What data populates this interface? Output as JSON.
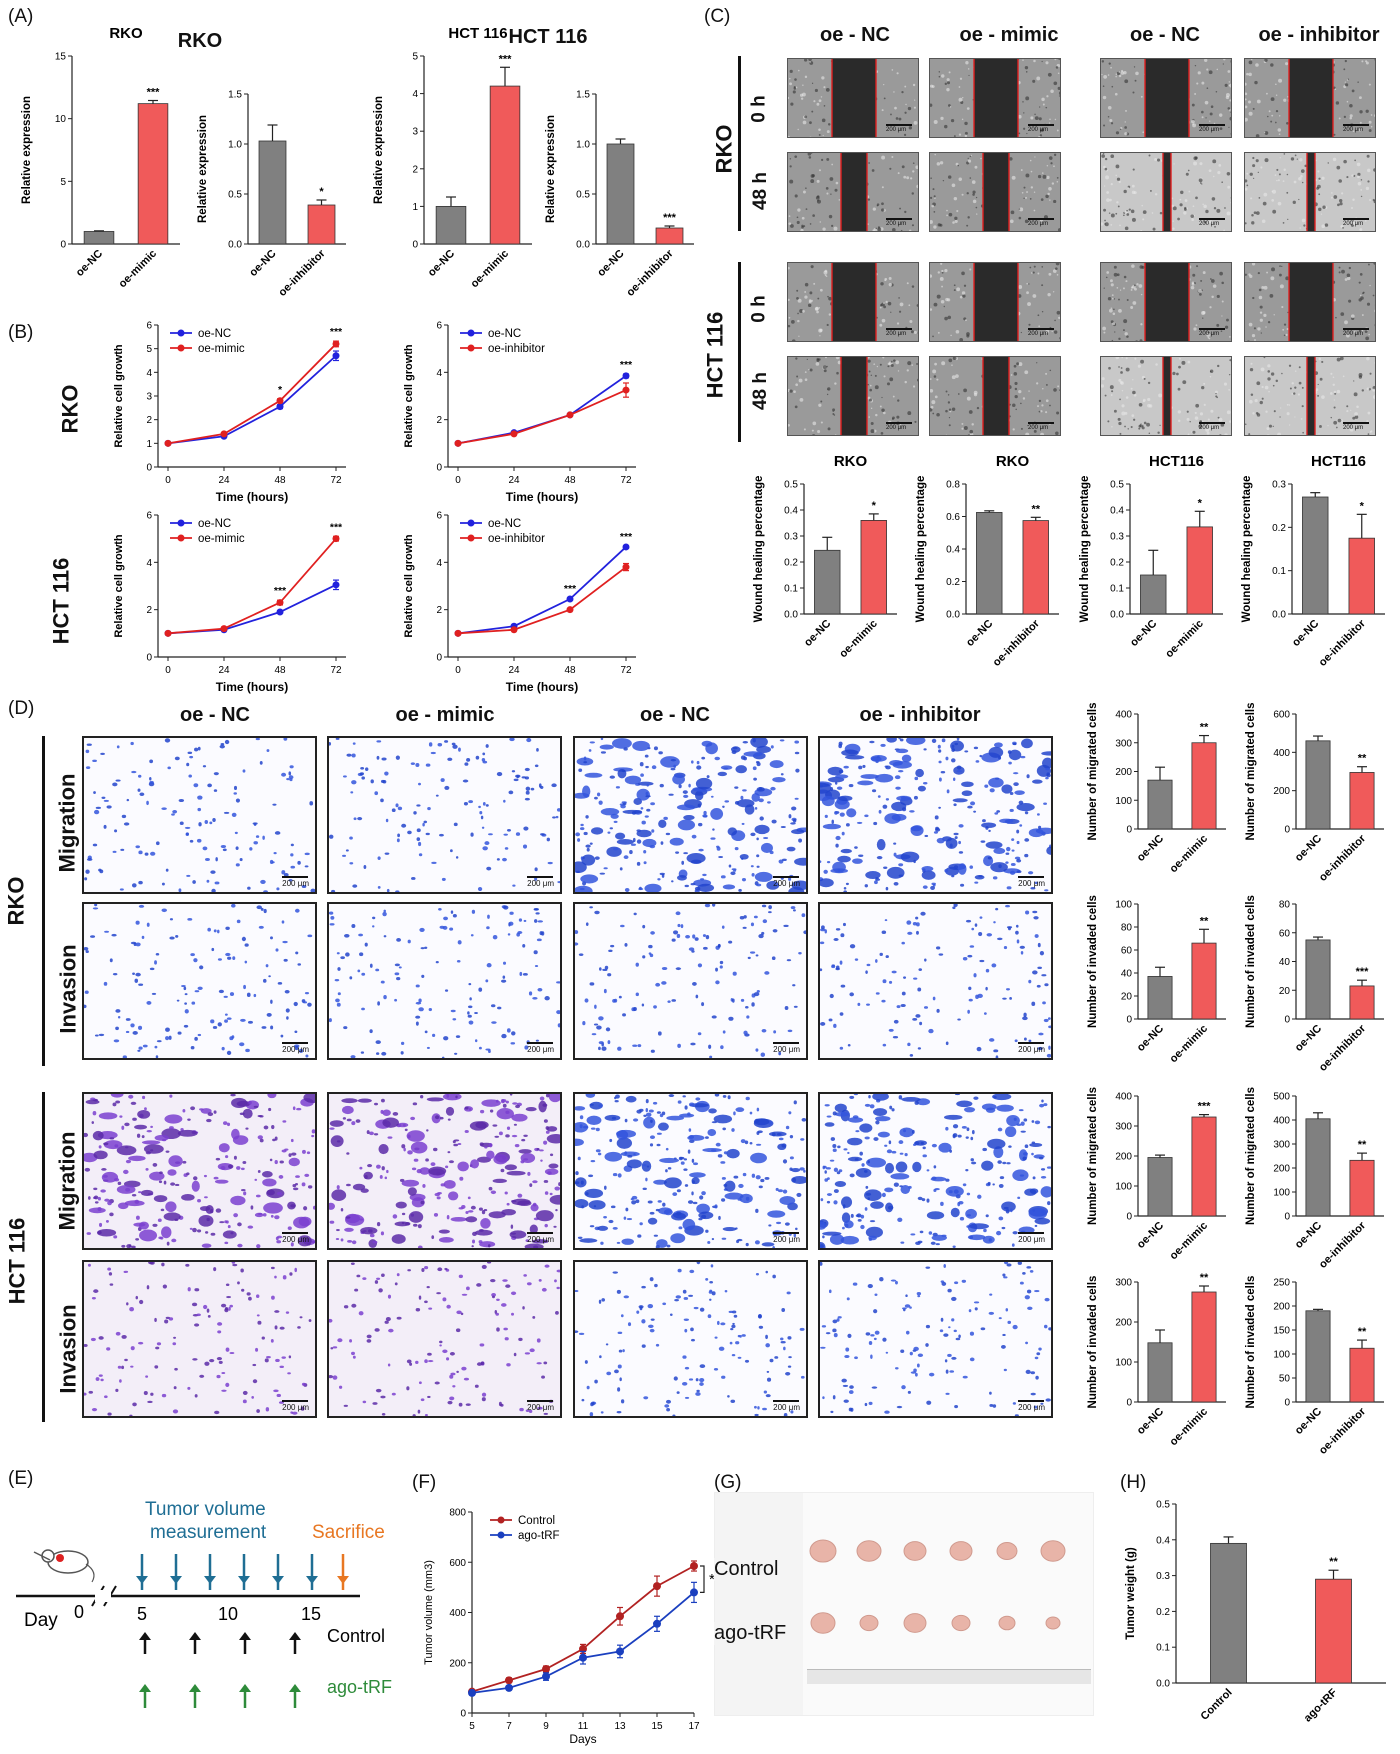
{
  "panels": {
    "A": "(A)",
    "B": "(B)",
    "C": "(C)",
    "D": "(D)",
    "E": "(E)",
    "F": "(F)",
    "G": "(G)",
    "H": "(H)"
  },
  "cells": {
    "rko": "RKO",
    "hct": "HCT 116",
    "hct_nospace": "HCT116"
  },
  "groups": {
    "oe_nc": "oe - NC",
    "oe_mimic": "oe - mimic",
    "oe_inhibitor": "oe - inhibitor"
  },
  "timepoints": {
    "t0": "0 h",
    "t48": "48 h"
  },
  "assays": {
    "migration": "Migration",
    "invasion": "Invasion"
  },
  "scale": "200 μm",
  "panel_e": {
    "measure_line1": "Tumor volume",
    "measure_line2": "measurement",
    "sacrifice": "Sacrifice",
    "day": "Day",
    "ticks": [
      "0",
      "5",
      "10",
      "15"
    ],
    "control": "Control",
    "ago": "ago-tRF",
    "colors": {
      "measure": "#1f6e94",
      "sacrifice": "#e87722",
      "control": "#111111",
      "ago": "#2e8b3a"
    }
  },
  "panel_g": {
    "control": "Control",
    "ago": "ago-tRF"
  },
  "colors": {
    "grey": "#808080",
    "red": "#f05a5a",
    "blue": "#2222dd",
    "redline": "#e02020",
    "darkred": "#b22222",
    "navy": "#1a3fbf"
  },
  "chart_data": [
    {
      "id": "A1",
      "type": "bar",
      "title": "RKO",
      "ylabel": "Relative expression",
      "categories": [
        "oe-NC",
        "oe-mimic"
      ],
      "values": [
        1.0,
        11.2
      ],
      "errors": [
        0.05,
        0.25
      ],
      "ylim": [
        0,
        15
      ],
      "yticks": [
        0,
        5,
        10,
        15
      ],
      "sig": [
        "",
        "***"
      ]
    },
    {
      "id": "A2",
      "type": "bar",
      "ylabel": "Relative expression",
      "categories": [
        "oe-NC",
        "oe-inhibitor"
      ],
      "values": [
        1.03,
        0.39
      ],
      "errors": [
        0.16,
        0.05
      ],
      "ylim": [
        0,
        1.5
      ],
      "yticks": [
        0,
        0.5,
        1.0,
        1.5
      ],
      "sig": [
        "",
        "*"
      ]
    },
    {
      "id": "A3",
      "type": "bar",
      "title": "HCT 116",
      "ylabel": "Relative expression",
      "categories": [
        "oe-NC",
        "oe-mimic"
      ],
      "values": [
        1.0,
        4.2
      ],
      "errors": [
        0.25,
        0.5
      ],
      "ylim": [
        0,
        5
      ],
      "yticks": [
        0,
        1,
        2,
        3,
        4,
        5
      ],
      "sig": [
        "",
        "***"
      ]
    },
    {
      "id": "A4",
      "type": "bar",
      "ylabel": "Relative expression",
      "categories": [
        "oe-NC",
        "oe-inhibitor"
      ],
      "values": [
        1.0,
        0.16
      ],
      "errors": [
        0.05,
        0.02
      ],
      "ylim": [
        0,
        1.5
      ],
      "yticks": [
        0,
        0.5,
        1.0,
        1.5
      ],
      "sig": [
        "",
        "***"
      ]
    },
    {
      "id": "B1",
      "type": "line",
      "xlabel": "Time (hours)",
      "ylabel": "Relative cell growth",
      "x": [
        0,
        24,
        48,
        72
      ],
      "ylim": [
        0,
        6
      ],
      "yticks": [
        0,
        1,
        2,
        3,
        4,
        5,
        6
      ],
      "sig": [
        "",
        "",
        "*",
        "***"
      ],
      "series": [
        {
          "name": "oe-NC",
          "values": [
            1.0,
            1.3,
            2.55,
            4.7
          ],
          "errors": [
            0.05,
            0.05,
            0.08,
            0.2
          ]
        },
        {
          "name": "oe-mimic",
          "values": [
            1.0,
            1.4,
            2.8,
            5.2
          ],
          "errors": [
            0.05,
            0.05,
            0.08,
            0.12
          ]
        }
      ]
    },
    {
      "id": "B2",
      "type": "line",
      "xlabel": "Time (hours)",
      "ylabel": "Relative cell growth",
      "x": [
        0,
        24,
        48,
        72
      ],
      "ylim": [
        0,
        6
      ],
      "yticks": [
        0,
        2,
        4,
        6
      ],
      "sig": [
        "",
        "",
        "",
        "***"
      ],
      "series": [
        {
          "name": "oe-NC",
          "values": [
            1.0,
            1.45,
            2.2,
            3.85
          ],
          "errors": [
            0.05,
            0.05,
            0.05,
            0.08
          ]
        },
        {
          "name": "oe-inhibitor",
          "values": [
            1.0,
            1.4,
            2.2,
            3.25
          ],
          "errors": [
            0.05,
            0.05,
            0.05,
            0.3
          ]
        }
      ]
    },
    {
      "id": "B3",
      "type": "line",
      "xlabel": "Time (hours)",
      "ylabel": "Relative cell growth",
      "x": [
        0,
        24,
        48,
        72
      ],
      "ylim": [
        0,
        6
      ],
      "yticks": [
        0,
        2,
        4,
        6
      ],
      "sig": [
        "",
        "",
        "***",
        "***"
      ],
      "series": [
        {
          "name": "oe-NC",
          "values": [
            1.0,
            1.15,
            1.9,
            3.05
          ],
          "errors": [
            0.05,
            0.05,
            0.05,
            0.2
          ]
        },
        {
          "name": "oe-mimic",
          "values": [
            1.0,
            1.2,
            2.3,
            5.0
          ],
          "errors": [
            0.05,
            0.05,
            0.1,
            0.1
          ]
        }
      ]
    },
    {
      "id": "B4",
      "type": "line",
      "xlabel": "Time (hours)",
      "ylabel": "Relative cell growth",
      "x": [
        0,
        24,
        48,
        72
      ],
      "ylim": [
        0,
        6
      ],
      "yticks": [
        0,
        2,
        4,
        6
      ],
      "sig": [
        "",
        "",
        "***",
        "***"
      ],
      "series": [
        {
          "name": "oe-NC",
          "values": [
            1.0,
            1.3,
            2.45,
            4.65
          ],
          "errors": [
            0.05,
            0.05,
            0.05,
            0.05
          ]
        },
        {
          "name": "oe-inhibitor",
          "values": [
            1.0,
            1.15,
            2.0,
            3.8
          ],
          "errors": [
            0.05,
            0.05,
            0.05,
            0.15
          ]
        }
      ]
    },
    {
      "id": "C1",
      "type": "bar",
      "title": "RKO",
      "ylabel": "Wound healing percentage",
      "categories": [
        "oe-NC",
        "oe-mimic"
      ],
      "values": [
        0.245,
        0.36
      ],
      "errors": [
        0.05,
        0.025
      ],
      "ylim": [
        0,
        0.5
      ],
      "yticks": [
        0,
        0.1,
        0.2,
        0.3,
        0.4,
        0.5
      ],
      "sig": [
        "",
        "*"
      ]
    },
    {
      "id": "C2",
      "type": "bar",
      "title": "RKO",
      "ylabel": "Wound healing percentage",
      "categories": [
        "oe-NC",
        "oe-inhibitor"
      ],
      "values": [
        0.625,
        0.575
      ],
      "errors": [
        0.01,
        0.02
      ],
      "ylim": [
        0,
        0.8
      ],
      "yticks": [
        0,
        0.2,
        0.4,
        0.6,
        0.8
      ],
      "sig": [
        "",
        "**"
      ]
    },
    {
      "id": "C3",
      "type": "bar",
      "title": "HCT116",
      "ylabel": "Wound healing percentage",
      "categories": [
        "oe-NC",
        "oe-mimic"
      ],
      "values": [
        0.15,
        0.335
      ],
      "errors": [
        0.095,
        0.06
      ],
      "ylim": [
        0,
        0.5
      ],
      "yticks": [
        0,
        0.1,
        0.2,
        0.3,
        0.4,
        0.5
      ],
      "sig": [
        "",
        "*"
      ]
    },
    {
      "id": "C4",
      "type": "bar",
      "title": "HCT116",
      "ylabel": "Wound healing percentage",
      "categories": [
        "oe-NC",
        "oe-inhibitor"
      ],
      "values": [
        0.27,
        0.175
      ],
      "errors": [
        0.01,
        0.055
      ],
      "ylim": [
        0,
        0.3
      ],
      "yticks": [
        0,
        0.1,
        0.2,
        0.3
      ],
      "sig": [
        "",
        "*"
      ]
    },
    {
      "id": "D1",
      "type": "bar",
      "ylabel": "Number of migrated cells",
      "categories": [
        "oe-NC",
        "oe-mimic"
      ],
      "values": [
        170,
        300
      ],
      "errors": [
        45,
        25
      ],
      "ylim": [
        0,
        400
      ],
      "yticks": [
        0,
        100,
        200,
        300,
        400
      ],
      "sig": [
        "",
        "**"
      ]
    },
    {
      "id": "D2",
      "type": "bar",
      "ylabel": "Number of migrated cells",
      "categories": [
        "oe-NC",
        "oe-inhibitor"
      ],
      "values": [
        460,
        295
      ],
      "errors": [
        25,
        30
      ],
      "ylim": [
        0,
        600
      ],
      "yticks": [
        0,
        200,
        400,
        600
      ],
      "sig": [
        "",
        "**"
      ]
    },
    {
      "id": "D3",
      "type": "bar",
      "ylabel": "Number of invaded cells",
      "categories": [
        "oe-NC",
        "oe-mimic"
      ],
      "values": [
        37,
        66
      ],
      "errors": [
        8,
        12
      ],
      "ylim": [
        0,
        100
      ],
      "yticks": [
        0,
        20,
        40,
        60,
        80,
        100
      ],
      "sig": [
        "",
        "**"
      ]
    },
    {
      "id": "D4",
      "type": "bar",
      "ylabel": "Number of invaded cells",
      "categories": [
        "oe-NC",
        "oe-inhibitor"
      ],
      "values": [
        55,
        23
      ],
      "errors": [
        2,
        4
      ],
      "ylim": [
        0,
        80
      ],
      "yticks": [
        0,
        20,
        40,
        60,
        80
      ],
      "sig": [
        "",
        "***"
      ]
    },
    {
      "id": "D5",
      "type": "bar",
      "ylabel": "Number of migrated cells",
      "categories": [
        "oe-NC",
        "oe-mimic"
      ],
      "values": [
        195,
        330
      ],
      "errors": [
        8,
        8
      ],
      "ylim": [
        0,
        400
      ],
      "yticks": [
        0,
        100,
        200,
        300,
        400
      ],
      "sig": [
        "",
        "***"
      ]
    },
    {
      "id": "D6",
      "type": "bar",
      "ylabel": "Number of migrated cells",
      "categories": [
        "oe-NC",
        "oe-inhibitor"
      ],
      "values": [
        405,
        232
      ],
      "errors": [
        25,
        30
      ],
      "ylim": [
        0,
        500
      ],
      "yticks": [
        0,
        100,
        200,
        300,
        400,
        500
      ],
      "sig": [
        "",
        "**"
      ]
    },
    {
      "id": "D7",
      "type": "bar",
      "ylabel": "Number of invaded cells",
      "categories": [
        "oe-NC",
        "oe-mimic"
      ],
      "values": [
        148,
        275
      ],
      "errors": [
        32,
        15
      ],
      "ylim": [
        0,
        300
      ],
      "yticks": [
        0,
        100,
        200,
        300
      ],
      "sig": [
        "",
        "**"
      ]
    },
    {
      "id": "D8",
      "type": "bar",
      "ylabel": "Number of invaded cells",
      "categories": [
        "oe-NC",
        "oe-inhibitor"
      ],
      "values": [
        190,
        112
      ],
      "errors": [
        3,
        17
      ],
      "ylim": [
        0,
        250
      ],
      "yticks": [
        0,
        50,
        100,
        150,
        200,
        250
      ],
      "sig": [
        "",
        "**"
      ]
    },
    {
      "id": "F",
      "type": "line",
      "xlabel": "Days",
      "ylabel": "Tumor volume (mm3)",
      "x": [
        5,
        7,
        9,
        11,
        13,
        15,
        17
      ],
      "ylim": [
        0,
        800
      ],
      "yticks": [
        0,
        200,
        400,
        600,
        800
      ],
      "sig_bracket": "*",
      "series": [
        {
          "name": "Control",
          "values": [
            85,
            130,
            175,
            255,
            385,
            505,
            585
          ],
          "errors": [
            5,
            10,
            12,
            18,
            35,
            40,
            20
          ]
        },
        {
          "name": "ago-tRF",
          "values": [
            80,
            100,
            145,
            220,
            245,
            355,
            480
          ],
          "errors": [
            5,
            8,
            15,
            25,
            25,
            30,
            40
          ]
        }
      ]
    },
    {
      "id": "H",
      "type": "bar",
      "ylabel": "Tumor weight (g)",
      "categories": [
        "Control",
        "ago-tRF"
      ],
      "values": [
        0.39,
        0.29
      ],
      "errors": [
        0.018,
        0.025
      ],
      "ylim": [
        0,
        0.5
      ],
      "yticks": [
        0,
        0.1,
        0.2,
        0.3,
        0.4,
        0.5
      ],
      "sig": [
        "",
        "**"
      ]
    }
  ]
}
